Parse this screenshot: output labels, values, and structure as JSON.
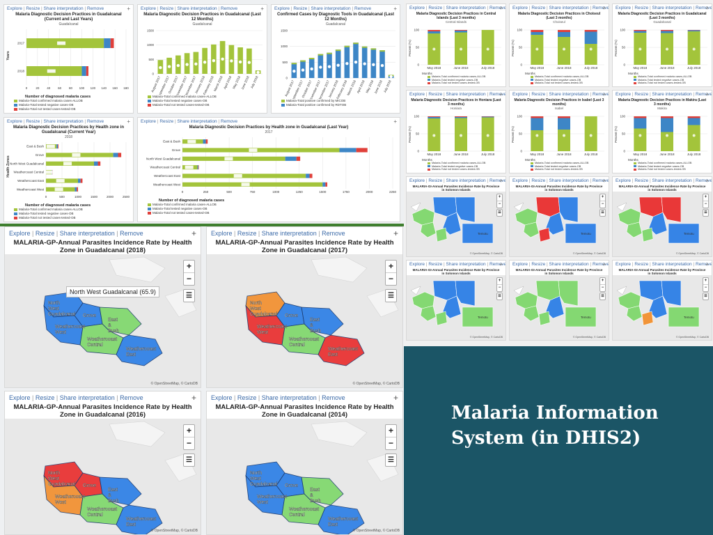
{
  "toolbar": {
    "explore": "Explore",
    "resize": "Resize",
    "share": "Share interpretation",
    "remove": "Remove",
    "sep": "|",
    "plus": "+"
  },
  "colors": {
    "green": "#a3c43b",
    "blue": "#3d86c6",
    "red": "#e0403a",
    "orange": "#f2902f",
    "lightgreen": "#7fd86c",
    "mapblue": "#2d7fe6",
    "mapred": "#ea2f2f",
    "dark": "#1b5566"
  },
  "title_slide": {
    "line1": "Malaria Information",
    "line2": "System (in DHIS2)"
  },
  "tl_panels": [
    {
      "title": "Malaria Diagnostic Decision Practices in Guadalcanal (Current and Last Years)",
      "subtitle": "Guadalcanal",
      "ylabel": "Years",
      "xlabel": "Number of diagnosed malaria cases",
      "legend": [
        "Malaria-Total confirmed malaria cases-ALLOB",
        "Malaria-Total tested negative cases-OB",
        "Malaria-Total not tested cases-tested-OB"
      ]
    },
    {
      "title": "Malaria Diagnostic Decision Practices in Guadalcanal (Last 12 Months)",
      "subtitle": "Guadalcanal",
      "legend": [
        "Malaria-Total confirmed malaria cases-ALLOB",
        "Malaria-Total tested negative cases-OB",
        "Malaria-Total not tested cases-tested-OB"
      ]
    },
    {
      "title": "Confirmed Cases by Diagnostic Tools in Guadalcanal (Last 12 Months)",
      "subtitle": "Guadalcanal",
      "legend": [
        "Malaria-Total positive confirmed by MICOB",
        "Malaria-Total positive confirmed by RDTOB"
      ]
    },
    {
      "title": "Malaria Diagnostic Decision Practices by Health zone in Guadalcanal (Current Year)",
      "subtitle": "2018",
      "ylabel": "Health Zones",
      "xlabel": "Number of diagnosed malaria cases",
      "legend": [
        "Malaria-Total confirmed malaria cases-ALLOB",
        "Malaria-Total tested negative cases-OB",
        "Malaria-Total not tested cases-tested-OB"
      ]
    },
    {
      "title": "Malaria Diagnostic Decision Practices by Health zone in Guadalcanal (Last Year)",
      "subtitle": "2017",
      "xlabel": "Number of diagnosed malaria cases",
      "legend": [
        "Malaria-Total confirmed malaria cases-ALLOB",
        "Malaria-Total tested negative cases-OB",
        "Malaria-Total not tested cases-tested-OB"
      ]
    }
  ],
  "tr_panels": [
    {
      "title": "Malaria Diagnostic Decision Practices in Central Islands (Last 3 months)",
      "subtitle": "Central Islands"
    },
    {
      "title": "Malaria Diagnostic Decision Practices in Choiseul (Last 3 months)",
      "subtitle": "Choiseul"
    },
    {
      "title": "Malaria Diagnostic Decision Practices in Guadalcanal (Last 3 months)",
      "subtitle": "Guadalcanal"
    },
    {
      "title": "Malaria Diagnostic Decision Practices in Honiara (Last 3 months)",
      "subtitle": "Honiara"
    },
    {
      "title": "Malaria Diagnostic Decision Practices in Isabel (Last 3 months)",
      "subtitle": "Isabel"
    },
    {
      "title": "Malaria Diagnostic Decision Practices in Makira (Last 3 months)",
      "subtitle": "Makira"
    }
  ],
  "tr_common": {
    "ylabel": "Percent (%)",
    "xlabel": "Months",
    "months": [
      "May 2018",
      "June 2018",
      "July 2018"
    ],
    "legend": [
      "Malaria-Total confirmed malaria cases-ALLOB",
      "Malaria-Total tested negative cases-OB",
      "Malaria-Total not tested cases-tested-OB"
    ]
  },
  "province_maps": {
    "title": "MALARIA-GI-Annual Parasites Incidence Rate by Province in Solomon Islands",
    "attribution": "© OpenStreetMap, © CartoDB",
    "temotu": "Temotu"
  },
  "big_maps": [
    {
      "title": "MALARIA-GP-Annual Parasites Incidence Rate by Health Zone in Guadalcanal (2018)",
      "tooltip": "North West Guadalcanal (65.9)"
    },
    {
      "title": "MALARIA-GP-Annual Parasites Incidence Rate by Health Zone in Guadalcanal (2017)"
    },
    {
      "title": "MALARIA-GP-Annual Parasites Incidence Rate by Health Zone in Guadalcanal (2016)"
    },
    {
      "title": "MALARIA-GP-Annual Parasites Incidence Rate by Health Zone in Guadalcanal (2014)"
    }
  ],
  "zones": {
    "nw": "North West Guadalcanal",
    "grove": "Grove",
    "east": "East & Bush",
    "wcw": "Weathercoast West",
    "wcc": "Weathercoast Central",
    "wce": "Weathercoast East"
  },
  "map_attribution": "© OpenStreetMap, © CartoDB",
  "zoom": {
    "in": "+",
    "out": "−",
    "layers": "☰"
  },
  "chart_data": [
    {
      "type": "bar",
      "title": "Malaria Diagnostic Decision Practices in Guadalcanal (Current and Last Years)",
      "categories": [
        "2017",
        "2018"
      ],
      "xlim": [
        0,
        180
      ],
      "series": [
        {
          "name": "Malaria-Total confirmed malaria cases-ALLOB",
          "values": [
            140,
            100
          ]
        },
        {
          "name": "Malaria-Total tested negative cases-OB",
          "values": [
            12,
            8
          ]
        },
        {
          "name": "Malaria-Total not tested cases-tested-OB",
          "values": [
            6,
            4
          ]
        }
      ],
      "data_labels": [
        "140k",
        "12k",
        "6k",
        "100k",
        "8k",
        "4k"
      ]
    },
    {
      "type": "bar",
      "title": "Malaria Diagnostic Decision Practices in Guadalcanal (Last 12 Months)",
      "ylim": [
        0,
        1500
      ],
      "categories": [
        "August 2017",
        "September 2017",
        "October 2017",
        "November 2017",
        "December 2017",
        "January 2018",
        "February 2018",
        "March 2018",
        "April 2018",
        "May 2018",
        "June 2018",
        "July 2018"
      ],
      "series": [
        {
          "name": "Malaria-Total confirmed malaria cases-ALLOB",
          "values": [
            480,
            560,
            640,
            720,
            760,
            900,
            1020,
            1140,
            1000,
            920,
            880,
            120
          ]
        }
      ]
    },
    {
      "type": "bar",
      "title": "Confirmed Cases by Diagnostic Tools in Guadalcanal (Last 12 Months)",
      "ylim": [
        0,
        1500
      ],
      "categories": [
        "August 2017",
        "September 2017",
        "October 2017",
        "November 2017",
        "December 2017",
        "January 2018",
        "February 2018",
        "March 2018",
        "April 2018",
        "May 2018",
        "June 2018",
        "July 2018"
      ],
      "series": [
        {
          "name": "Malaria-Total positive confirmed by RDTOB",
          "values": [
            480,
            560,
            640,
            760,
            800,
            900,
            1020,
            1120,
            1000,
            940,
            880,
            100
          ]
        }
      ]
    },
    {
      "type": "bar",
      "title": "Malaria Diagnostic Decision Practices by Health zone in Guadalcanal (Current Year)",
      "xlim": [
        0,
        2500
      ],
      "categories": [
        "East & Bush",
        "Grove",
        "North West Guadalcanal",
        "Weathercoast Central",
        "Weathercoast East",
        "Weathercoast West"
      ],
      "series": [
        {
          "name": "Malaria-Total confirmed malaria cases-ALLOB",
          "values": [
            330,
            2100,
            1500,
            180,
            1000,
            900
          ]
        },
        {
          "name": "Malaria-Total tested negative cases-OB",
          "values": [
            40,
            150,
            120,
            20,
            80,
            60
          ]
        },
        {
          "name": "Malaria-Total not tested cases-tested-OB",
          "values": [
            20,
            100,
            80,
            10,
            60,
            40
          ]
        }
      ],
      "data_labels": [
        "330",
        "2100",
        "1500",
        "180",
        "1000",
        "900"
      ]
    },
    {
      "type": "bar",
      "title": "Malaria Diagnostic Decision Practices by Health zone in Guadalcanal (Last Year)",
      "xlim": [
        0,
        2250
      ],
      "categories": [
        "East & Bush",
        "Grove",
        "North West Guadalcanal",
        "Weathercoast Central",
        "Weathercoast East",
        "Weathercoast West"
      ],
      "series": [
        {
          "name": "Malaria-Total confirmed malaria cases-ALLOB",
          "values": [
            220,
            1680,
            1100,
            160,
            1320,
            1500
          ]
        },
        {
          "name": "Malaria-Total tested negative cases-OB",
          "values": [
            30,
            180,
            120,
            10,
            40,
            30
          ]
        },
        {
          "name": "Malaria-Total not tested cases-tested-OB",
          "values": [
            20,
            120,
            40,
            5,
            30,
            20
          ]
        }
      ],
      "data_labels": [
        "220",
        "1680",
        "1100",
        "160",
        "1320",
        "1500"
      ]
    },
    {
      "type": "bar",
      "title": "Malaria Diagnostic Decision Practices in Central Islands (Last 3 months)",
      "categories": [
        "May 2018",
        "June 2018",
        "July 2018"
      ],
      "ylim": [
        0,
        100
      ],
      "series": [
        {
          "name": "Malaria-Total confirmed malaria cases-ALLOB",
          "values": [
            90,
            93,
            100
          ]
        },
        {
          "name": "Malaria-Total tested negative cases-OB",
          "values": [
            6,
            5,
            0
          ]
        },
        {
          "name": "Malaria-Total not tested cases-tested-OB",
          "values": [
            4,
            2,
            0
          ]
        }
      ]
    },
    {
      "type": "bar",
      "title": "Malaria Diagnostic Decision Practices in Choiseul (Last 3 months)",
      "categories": [
        "May 2018",
        "June 2018",
        "July 2018"
      ],
      "ylim": [
        0,
        100
      ],
      "series": [
        {
          "name": "Malaria-Total confirmed malaria cases-ALLOB",
          "values": [
            86,
            80,
            60
          ]
        },
        {
          "name": "Malaria-Total tested negative cases-OB",
          "values": [
            8,
            14,
            35
          ]
        },
        {
          "name": "Malaria-Total not tested cases-tested-OB",
          "values": [
            6,
            6,
            5
          ]
        }
      ]
    },
    {
      "type": "bar",
      "title": "Malaria Diagnostic Decision Practices in Guadalcanal (Last 3 months)",
      "categories": [
        "May 2018",
        "June 2018",
        "July 2018"
      ],
      "ylim": [
        0,
        100
      ],
      "series": [
        {
          "name": "Malaria-Total confirmed malaria cases-ALLOB",
          "values": [
            92,
            91,
            96
          ]
        },
        {
          "name": "Malaria-Total tested negative cases-OB",
          "values": [
            5,
            6,
            3
          ]
        },
        {
          "name": "Malaria-Total not tested cases-tested-OB",
          "values": [
            3,
            3,
            1
          ]
        }
      ]
    },
    {
      "type": "bar",
      "title": "Malaria Diagnostic Decision Practices in Honiara (Last 3 months)",
      "categories": [
        "May 2018",
        "June 2018",
        "July 2018"
      ],
      "ylim": [
        0,
        100
      ],
      "series": [
        {
          "name": "Malaria-Total confirmed malaria cases-ALLOB",
          "values": [
            94,
            95,
            97
          ]
        },
        {
          "name": "Malaria-Total tested negative cases-OB",
          "values": [
            4,
            3,
            2
          ]
        },
        {
          "name": "Malaria-Total not tested cases-tested-OB",
          "values": [
            2,
            2,
            1
          ]
        }
      ]
    },
    {
      "type": "bar",
      "title": "Malaria Diagnostic Decision Practices in Isabel (Last 3 months)",
      "categories": [
        "May 2018",
        "June 2018",
        "July 2018"
      ],
      "ylim": [
        0,
        100
      ],
      "series": [
        {
          "name": "Malaria-Total confirmed malaria cases-ALLOB",
          "values": [
            60,
            62,
            100
          ]
        },
        {
          "name": "Malaria-Total tested negative cases-OB",
          "values": [
            35,
            33,
            0
          ]
        },
        {
          "name": "Malaria-Total not tested cases-tested-OB",
          "values": [
            5,
            5,
            0
          ]
        }
      ]
    },
    {
      "type": "bar",
      "title": "Malaria Diagnostic Decision Practices in Makira (Last 3 months)",
      "categories": [
        "May 2018",
        "June 2018",
        "July 2018"
      ],
      "ylim": [
        0,
        100
      ],
      "series": [
        {
          "name": "Malaria-Total confirmed malaria cases-ALLOB",
          "values": [
            65,
            55,
            75
          ]
        },
        {
          "name": "Malaria-Total tested negative cases-OB",
          "values": [
            30,
            40,
            20
          ]
        },
        {
          "name": "Malaria-Total not tested cases-tested-OB",
          "values": [
            5,
            5,
            5
          ]
        }
      ]
    }
  ]
}
